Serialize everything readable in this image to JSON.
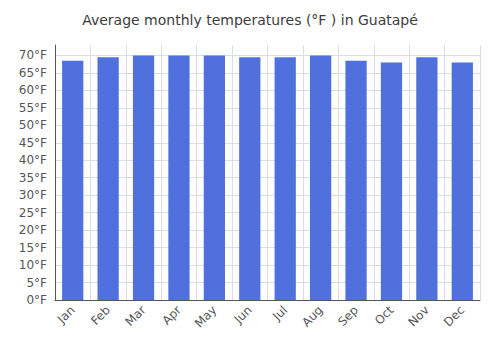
{
  "chart_data": {
    "type": "bar",
    "title": "Average monthly temperatures (°F ) in Guatapé",
    "categories": [
      "Jan",
      "Feb",
      "Mar",
      "Apr",
      "May",
      "Jun",
      "Jul",
      "Aug",
      "Sep",
      "Oct",
      "Nov",
      "Dec"
    ],
    "values": [
      68.5,
      69.5,
      70.0,
      70.0,
      70.0,
      69.5,
      69.5,
      70.0,
      68.5,
      68.0,
      69.5,
      68.0
    ],
    "ylim": [
      0,
      73
    ],
    "yticks": [
      {
        "value": 0,
        "label": "0°F"
      },
      {
        "value": 5,
        "label": "5°F"
      },
      {
        "value": 10,
        "label": "10°F"
      },
      {
        "value": 15,
        "label": "15°F"
      },
      {
        "value": 20,
        "label": "20°F"
      },
      {
        "value": 25,
        "label": "25°F"
      },
      {
        "value": 30,
        "label": "30°F"
      },
      {
        "value": 35,
        "label": "35°F"
      },
      {
        "value": 40,
        "label": "40°F"
      },
      {
        "value": 45,
        "label": "45°F"
      },
      {
        "value": 50,
        "label": "50°F"
      },
      {
        "value": 55,
        "label": "55°F"
      },
      {
        "value": 60,
        "label": "60°F"
      },
      {
        "value": 65,
        "label": "65°F"
      },
      {
        "value": 70,
        "label": "70°F"
      }
    ],
    "grid": true
  }
}
